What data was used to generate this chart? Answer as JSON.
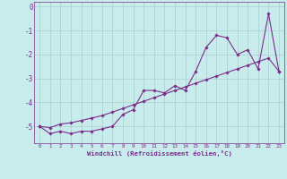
{
  "x": [
    0,
    1,
    2,
    3,
    4,
    5,
    6,
    7,
    8,
    9,
    10,
    11,
    12,
    13,
    14,
    15,
    16,
    17,
    18,
    19,
    20,
    21,
    22,
    23
  ],
  "y_data": [
    -5.0,
    -5.3,
    -5.2,
    -5.3,
    -5.2,
    -5.2,
    -5.1,
    -5.0,
    -4.5,
    -4.3,
    -3.5,
    -3.5,
    -3.6,
    -3.3,
    -3.5,
    -2.7,
    -1.7,
    -1.2,
    -1.3,
    -2.0,
    -1.8,
    -2.6,
    -0.3,
    -2.7
  ],
  "y_trend": [
    -5.0,
    -5.05,
    -4.9,
    -4.85,
    -4.75,
    -4.65,
    -4.55,
    -4.4,
    -4.25,
    -4.1,
    -3.95,
    -3.8,
    -3.65,
    -3.5,
    -3.35,
    -3.2,
    -3.05,
    -2.9,
    -2.75,
    -2.6,
    -2.45,
    -2.3,
    -2.15,
    -2.7
  ],
  "xlim": [
    -0.5,
    23.5
  ],
  "ylim": [
    -5.7,
    0.2
  ],
  "yticks": [
    0,
    -1,
    -2,
    -3,
    -4,
    -5
  ],
  "xticks": [
    0,
    1,
    2,
    3,
    4,
    5,
    6,
    7,
    8,
    9,
    10,
    11,
    12,
    13,
    14,
    15,
    16,
    17,
    18,
    19,
    20,
    21,
    22,
    23
  ],
  "xlabel": "Windchill (Refroidissement éolien,°C)",
  "line_color": "#7B2D8B",
  "bg_color": "#c8ecec",
  "grid_color": "#aed4d4"
}
